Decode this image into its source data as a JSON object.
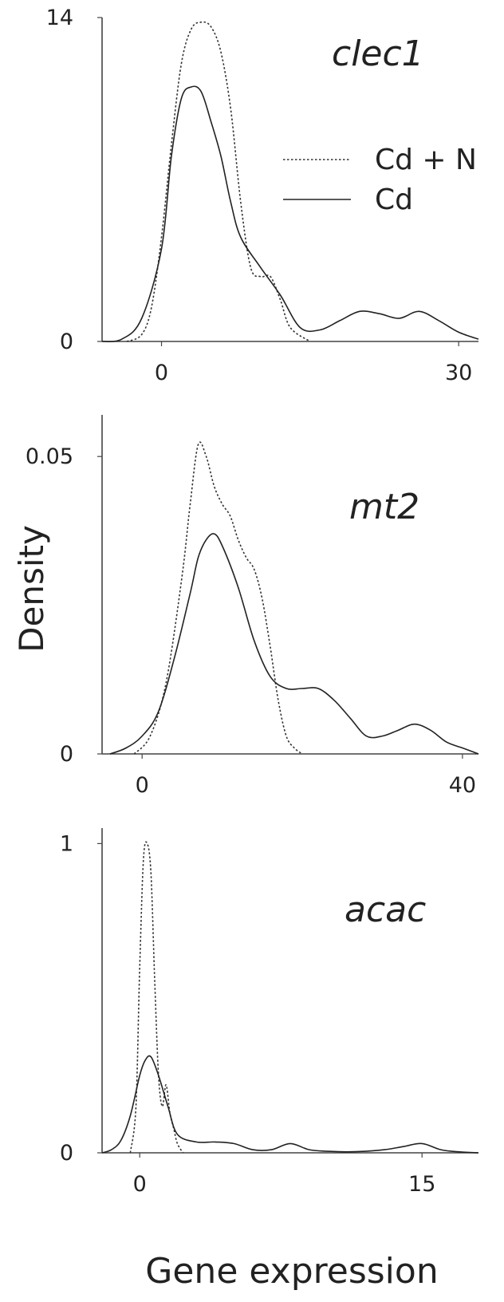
{
  "ylabel": "Density",
  "xlabel": "Gene expression",
  "legend": {
    "items": [
      {
        "label": "Cd + N",
        "style": "dashed"
      },
      {
        "label": "Cd",
        "style": "solid"
      }
    ],
    "placement": "top-right of first panel"
  },
  "chart_data": [
    {
      "type": "line",
      "title": "clec1",
      "xlim": [
        -6,
        32
      ],
      "ylim": [
        0,
        14
      ],
      "xticks": [
        "0",
        "30"
      ],
      "xtick_values": [
        0,
        30
      ],
      "yticks": [
        "0",
        "14"
      ],
      "ytick_values": [
        0,
        14
      ],
      "series": [
        {
          "name": "Cd + N",
          "style": "dashed",
          "x": [
            -3.5,
            -2,
            -1,
            0,
            1,
            2,
            3,
            4,
            5,
            6,
            7,
            8,
            9,
            10,
            11,
            12,
            13,
            15
          ],
          "y": [
            0,
            0.3,
            1.5,
            4.5,
            8.5,
            12,
            13.5,
            13.8,
            13.6,
            12.5,
            10,
            6,
            3.2,
            2.8,
            2.8,
            1.8,
            0.6,
            0
          ]
        },
        {
          "name": "Cd",
          "style": "solid",
          "x": [
            -6,
            -4,
            -2,
            0,
            1,
            2,
            3,
            4,
            5,
            6,
            7,
            8,
            10,
            12,
            14,
            16,
            18,
            20,
            22,
            24,
            26,
            28,
            30,
            32
          ],
          "y": [
            0,
            0.1,
            1,
            4,
            8,
            10.5,
            11,
            10.8,
            9.5,
            8,
            6,
            4.5,
            3.2,
            2.0,
            0.6,
            0.5,
            0.9,
            1.3,
            1.2,
            1.0,
            1.3,
            0.9,
            0.4,
            0.1
          ]
        }
      ]
    },
    {
      "type": "line",
      "title": "mt2",
      "xlim": [
        -5,
        42
      ],
      "ylim": [
        0,
        0.057
      ],
      "xticks": [
        "0",
        "40"
      ],
      "xtick_values": [
        0,
        40
      ],
      "yticks": [
        "0",
        "0.05"
      ],
      "ytick_values": [
        0,
        0.05
      ],
      "series": [
        {
          "name": "Cd + N",
          "style": "dashed",
          "x": [
            -1,
            1,
            3,
            5,
            6,
            7,
            8,
            9,
            10,
            11,
            12,
            13,
            14,
            15,
            16,
            17,
            18,
            19,
            20
          ],
          "y": [
            0,
            0.003,
            0.012,
            0.03,
            0.042,
            0.052,
            0.05,
            0.045,
            0.042,
            0.04,
            0.036,
            0.033,
            0.031,
            0.026,
            0.018,
            0.009,
            0.003,
            0.001,
            0
          ]
        },
        {
          "name": "Cd",
          "style": "solid",
          "x": [
            -4,
            -2,
            0,
            2,
            4,
            6,
            7,
            8,
            9,
            10,
            12,
            14,
            16,
            18,
            20,
            22,
            24,
            26,
            28,
            30,
            32,
            34,
            36,
            38,
            40,
            42
          ],
          "y": [
            0,
            0.001,
            0.003,
            0.007,
            0.016,
            0.027,
            0.033,
            0.036,
            0.037,
            0.035,
            0.028,
            0.019,
            0.013,
            0.011,
            0.011,
            0.011,
            0.009,
            0.006,
            0.003,
            0.003,
            0.004,
            0.005,
            0.004,
            0.002,
            0.001,
            0
          ]
        }
      ]
    },
    {
      "type": "line",
      "title": "acac",
      "xlim": [
        -2,
        18
      ],
      "ylim": [
        0,
        1.05
      ],
      "xticks": [
        "0",
        "15"
      ],
      "xtick_values": [
        0,
        15
      ],
      "yticks": [
        "0",
        "1"
      ],
      "ytick_values": [
        0,
        1
      ],
      "series": [
        {
          "name": "Cd + N",
          "style": "dashed",
          "x": [
            -0.5,
            -0.2,
            0,
            0.2,
            0.4,
            0.6,
            0.8,
            1.0,
            1.2,
            1.4,
            1.6,
            1.8,
            2.0,
            2.3
          ],
          "y": [
            0,
            0.15,
            0.6,
            0.95,
            1.0,
            0.9,
            0.55,
            0.25,
            0.15,
            0.22,
            0.13,
            0.08,
            0.03,
            0
          ]
        },
        {
          "name": "Cd",
          "style": "solid",
          "x": [
            -2,
            -1.5,
            -1,
            -0.5,
            0,
            0.3,
            0.6,
            1,
            1.5,
            2,
            3,
            4,
            5,
            6,
            7,
            8,
            9,
            10,
            11,
            12,
            13,
            14,
            15,
            16,
            17,
            18
          ],
          "y": [
            0,
            0.01,
            0.04,
            0.12,
            0.25,
            0.3,
            0.31,
            0.25,
            0.15,
            0.06,
            0.035,
            0.035,
            0.03,
            0.01,
            0.01,
            0.03,
            0.01,
            0.005,
            0.003,
            0.005,
            0.01,
            0.02,
            0.03,
            0.01,
            0.003,
            0
          ]
        }
      ]
    }
  ]
}
